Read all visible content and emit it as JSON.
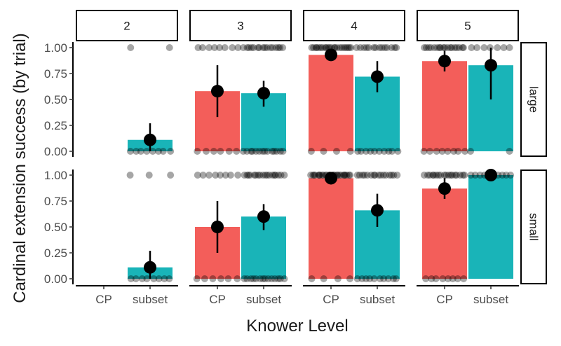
{
  "chart_data": {
    "type": "bar",
    "title": "",
    "xlabel": "Knower Level",
    "ylabel": "Cardinal extension success (by trial)",
    "ylim": [
      0,
      1
    ],
    "y_ticks": [
      "0.00",
      "0.25",
      "0.50",
      "0.75",
      "1.00"
    ],
    "categories": [
      "CP",
      "subset"
    ],
    "facet_columns": [
      "2",
      "3",
      "4",
      "5"
    ],
    "facet_rows": [
      "large",
      "small"
    ],
    "colors": {
      "CP": "#f35e5a",
      "subset": "#19b4b8",
      "point": "#000000"
    },
    "panels": [
      {
        "row": "large",
        "col": "2",
        "bars": [
          {
            "category": "subset",
            "mean": 0.11,
            "lo": 0.0,
            "hi": 0.27,
            "n_zero": 8,
            "n_one": 2
          }
        ]
      },
      {
        "row": "large",
        "col": "3",
        "bars": [
          {
            "category": "CP",
            "mean": 0.58,
            "lo": 0.33,
            "hi": 0.83,
            "n_zero": 6,
            "n_one": 8
          },
          {
            "category": "subset",
            "mean": 0.56,
            "lo": 0.43,
            "hi": 0.68,
            "n_zero": 14,
            "n_one": 16
          }
        ]
      },
      {
        "row": "large",
        "col": "4",
        "bars": [
          {
            "category": "CP",
            "mean": 0.93,
            "lo": 0.93,
            "hi": 0.93,
            "n_zero": 4,
            "n_one": 22
          },
          {
            "category": "subset",
            "mean": 0.72,
            "lo": 0.57,
            "hi": 0.87,
            "n_zero": 10,
            "n_one": 14
          }
        ]
      },
      {
        "row": "large",
        "col": "5",
        "bars": [
          {
            "category": "CP",
            "mean": 0.87,
            "lo": 0.77,
            "hi": 0.97,
            "n_zero": 8,
            "n_one": 18
          },
          {
            "category": "subset",
            "mean": 0.83,
            "lo": 0.5,
            "hi": 1.0,
            "n_zero": 2,
            "n_one": 7
          }
        ]
      },
      {
        "row": "small",
        "col": "2",
        "bars": [
          {
            "category": "subset",
            "mean": 0.11,
            "lo": 0.0,
            "hi": 0.27,
            "n_zero": 8,
            "n_one": 3
          }
        ]
      },
      {
        "row": "small",
        "col": "3",
        "bars": [
          {
            "category": "CP",
            "mean": 0.5,
            "lo": 0.25,
            "hi": 0.75,
            "n_zero": 6,
            "n_one": 8
          },
          {
            "category": "subset",
            "mean": 0.6,
            "lo": 0.47,
            "hi": 0.72,
            "n_zero": 14,
            "n_one": 18
          }
        ]
      },
      {
        "row": "small",
        "col": "4",
        "bars": [
          {
            "category": "CP",
            "mean": 0.97,
            "lo": 0.97,
            "hi": 0.97,
            "n_zero": 4,
            "n_one": 26
          },
          {
            "category": "subset",
            "mean": 0.66,
            "lo": 0.5,
            "hi": 0.82,
            "n_zero": 10,
            "n_one": 16
          }
        ]
      },
      {
        "row": "small",
        "col": "5",
        "bars": [
          {
            "category": "CP",
            "mean": 0.87,
            "lo": 0.77,
            "hi": 0.97,
            "n_zero": 8,
            "n_one": 18
          },
          {
            "category": "subset",
            "mean": 1.0,
            "lo": 1.0,
            "hi": 1.0,
            "n_zero": 0,
            "n_one": 10
          }
        ]
      }
    ]
  }
}
